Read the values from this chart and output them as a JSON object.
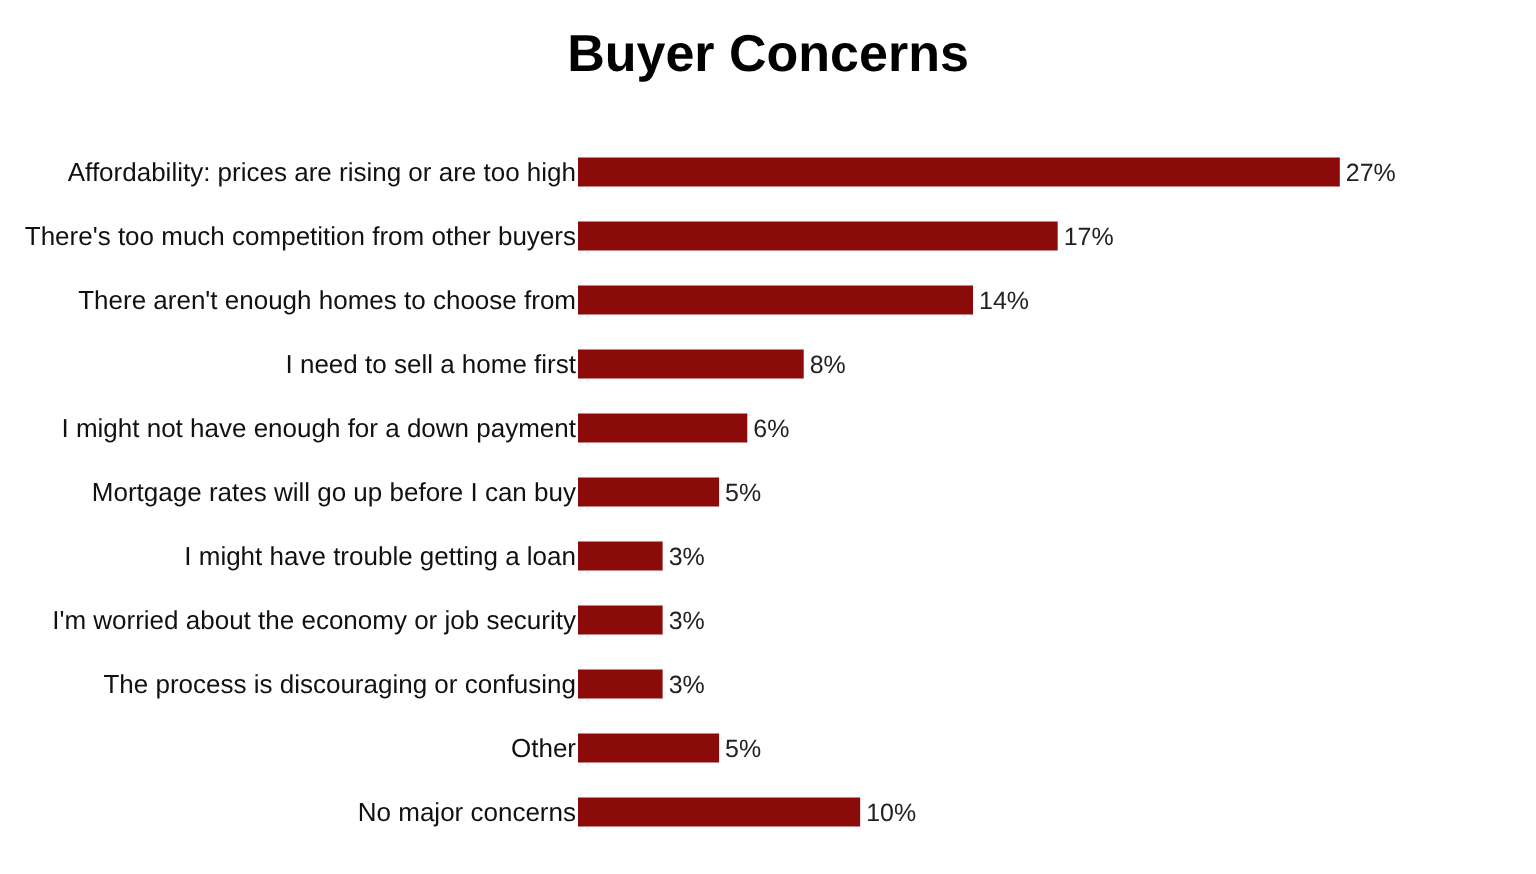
{
  "chart_data": {
    "type": "bar",
    "orientation": "horizontal",
    "title": "Buyer Concerns",
    "categories": [
      "Affordability: prices are rising or are too high",
      "There's too much competition from other buyers",
      "There aren't enough homes to choose from",
      "I need to sell a home first",
      "I might not have enough for a down payment",
      "Mortgage rates will go up before I can buy",
      "I might have trouble getting a loan",
      "I'm worried about the economy or job security",
      "The process is discouraging or confusing",
      "Other",
      "No major concerns"
    ],
    "values": [
      27,
      17,
      14,
      8,
      6,
      5,
      3,
      3,
      3,
      5,
      10
    ],
    "value_labels": [
      "27%",
      "17%",
      "14%",
      "8%",
      "6%",
      "5%",
      "3%",
      "3%",
      "3%",
      "5%",
      "10%"
    ],
    "color": "#8b0a0a"
  }
}
